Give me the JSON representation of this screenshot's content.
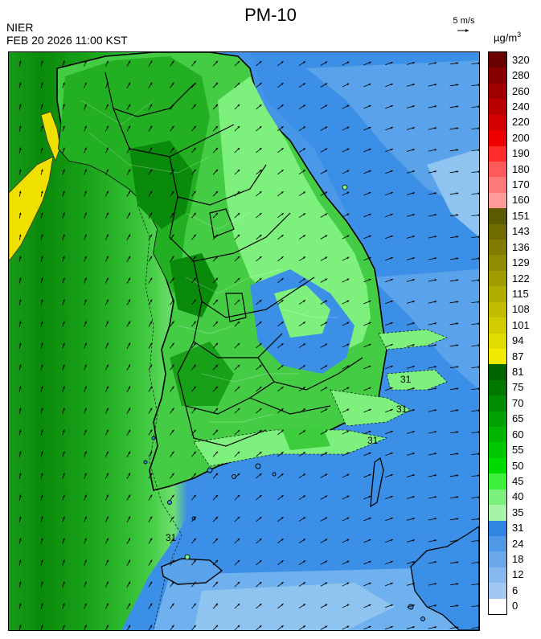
{
  "header": {
    "title": "PM-10",
    "agency": "NIER",
    "timestamp": "FEB 20 2026 11:00 KST",
    "wind_reference": "5 m/s",
    "unit_base": "µg/m",
    "unit_exp": "3"
  },
  "map": {
    "contour_labels": [
      "31",
      "31",
      "31",
      "31"
    ],
    "colors": {
      "yellow": "#f0e000",
      "dark_green": "#0a8a0a",
      "mid_green": "#22b022",
      "bright_green": "#3ccc3c",
      "light_green": "#7ef07e",
      "blue": "#3c8fe6",
      "light_blue": "#6fb0ee",
      "pale_blue": "#90c4f0",
      "outline": "#000000"
    }
  },
  "legend": {
    "levels": [
      {
        "label": "320",
        "color": "#6b0000"
      },
      {
        "label": "280",
        "color": "#880000"
      },
      {
        "label": "260",
        "color": "#a00000"
      },
      {
        "label": "240",
        "color": "#b80000"
      },
      {
        "label": "220",
        "color": "#d40000"
      },
      {
        "label": "200",
        "color": "#ee0000"
      },
      {
        "label": "190",
        "color": "#ff2a2a"
      },
      {
        "label": "180",
        "color": "#ff5a5a"
      },
      {
        "label": "170",
        "color": "#ff7a7a"
      },
      {
        "label": "160",
        "color": "#ff9a9a"
      },
      {
        "label": "151",
        "color": "#5c5a00"
      },
      {
        "label": "143",
        "color": "#706c00"
      },
      {
        "label": "136",
        "color": "#807c00"
      },
      {
        "label": "129",
        "color": "#908c00"
      },
      {
        "label": "122",
        "color": "#a09c00"
      },
      {
        "label": "115",
        "color": "#b0ac00"
      },
      {
        "label": "108",
        "color": "#c0bc00"
      },
      {
        "label": "101",
        "color": "#d0cc00"
      },
      {
        "label": "94",
        "color": "#e0dc00"
      },
      {
        "label": "87",
        "color": "#f0ea00"
      },
      {
        "label": "81",
        "color": "#006400"
      },
      {
        "label": "75",
        "color": "#007800"
      },
      {
        "label": "70",
        "color": "#008c00"
      },
      {
        "label": "65",
        "color": "#00a000"
      },
      {
        "label": "60",
        "color": "#00b400"
      },
      {
        "label": "55",
        "color": "#00c800"
      },
      {
        "label": "50",
        "color": "#00dc00"
      },
      {
        "label": "45",
        "color": "#3cf03c"
      },
      {
        "label": "40",
        "color": "#7cf07c"
      },
      {
        "label": "35",
        "color": "#a6f4a6"
      },
      {
        "label": "31",
        "color": "#2e86e0"
      },
      {
        "label": "24",
        "color": "#4e98e6"
      },
      {
        "label": "18",
        "color": "#6aa8ea"
      },
      {
        "label": "12",
        "color": "#86b8ee"
      },
      {
        "label": "6",
        "color": "#a0c8f2"
      },
      {
        "label": "0",
        "color": "#ffffff"
      }
    ]
  }
}
